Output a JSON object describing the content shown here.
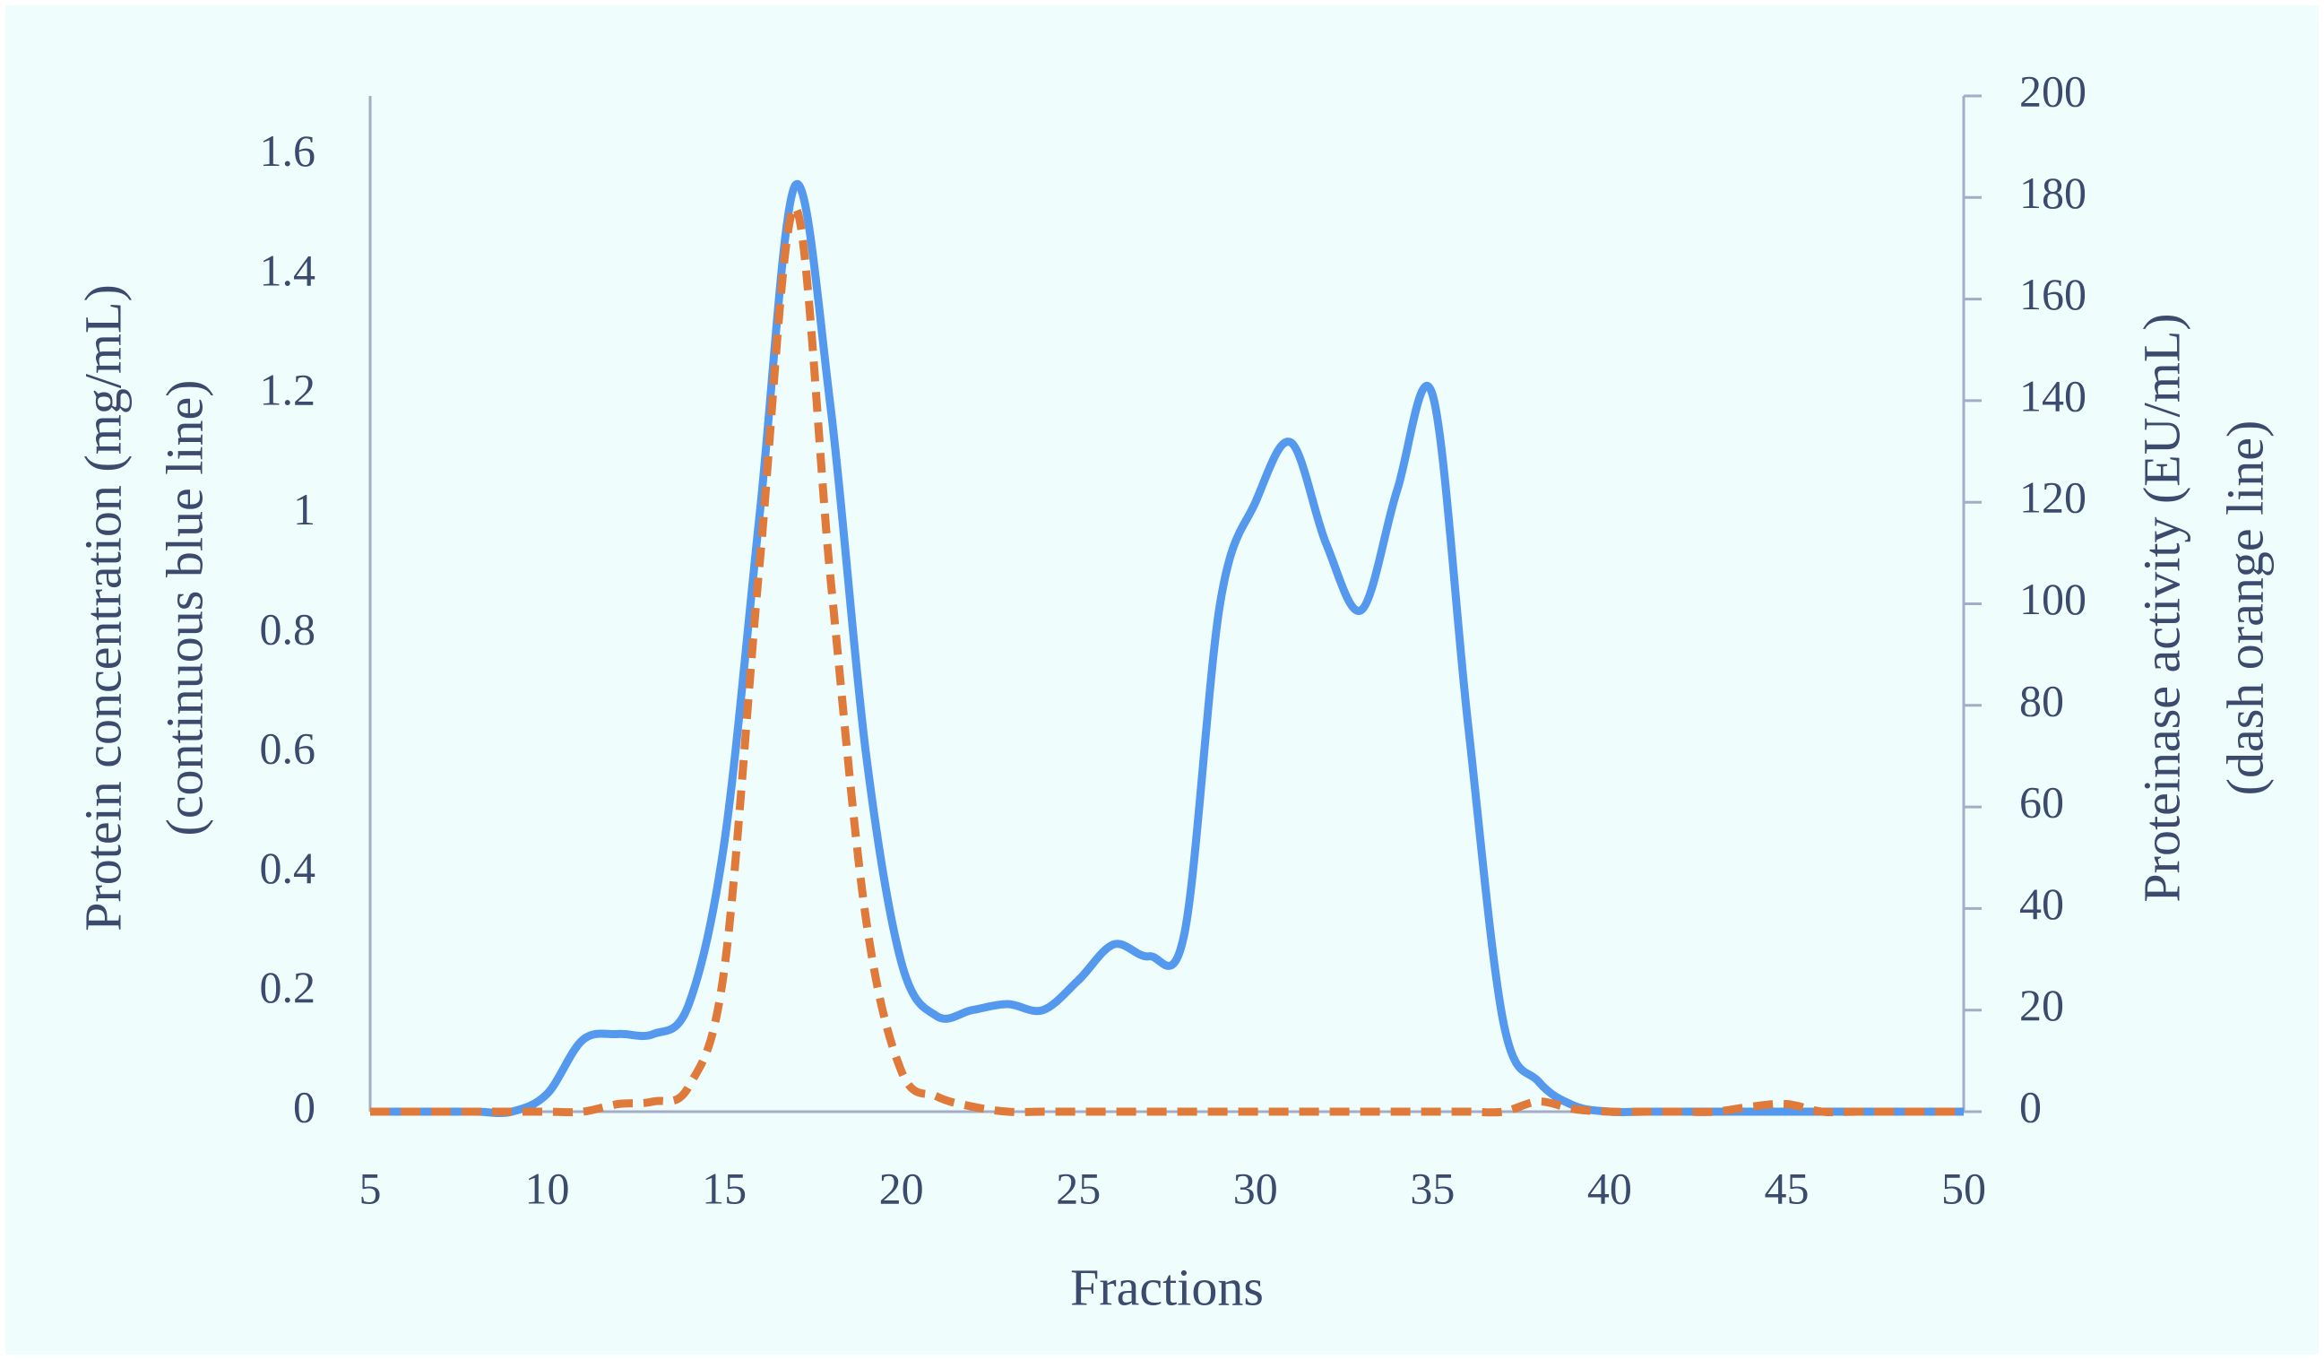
{
  "chart_data": {
    "type": "line",
    "xlabel": "Fractions",
    "ylabel": [
      "Protein concentration (mg/mL)",
      "(continuous blue line)"
    ],
    "y2label": [
      "Proteinase activity (EU/mL)",
      "(dash orange line)"
    ],
    "x": [
      5,
      6,
      7,
      8,
      9,
      10,
      11,
      12,
      13,
      14,
      15,
      16,
      17,
      18,
      19,
      20,
      21,
      22,
      23,
      24,
      25,
      26,
      27,
      28,
      29,
      30,
      31,
      32,
      33,
      34,
      35,
      36,
      37,
      38,
      39,
      40,
      41,
      42,
      43,
      44,
      45,
      46,
      47,
      48,
      49,
      50
    ],
    "series": [
      {
        "name": "Protein concentration",
        "color": "#5599ee",
        "dash": false,
        "values": [
          0,
          0,
          0,
          0,
          0,
          0.03,
          0.12,
          0.13,
          0.13,
          0.18,
          0.45,
          1.0,
          1.55,
          1.18,
          0.6,
          0.25,
          0.16,
          0.17,
          0.18,
          0.17,
          0.22,
          0.28,
          0.26,
          0.3,
          0.85,
          1.02,
          1.12,
          0.95,
          0.84,
          1.04,
          1.2,
          0.65,
          0.15,
          0.05,
          0.01,
          0,
          0,
          0,
          0,
          0,
          0,
          0,
          0,
          0,
          0,
          0
        ]
      },
      {
        "name": "Proteinase activity",
        "color": "#e07a3a",
        "dash": true,
        "axis": "y2",
        "values": [
          0,
          0,
          0,
          0,
          0,
          0,
          0,
          1.5,
          2,
          5,
          28,
          108,
          178,
          105,
          38,
          8,
          3,
          1,
          0,
          0,
          0,
          0,
          0,
          0,
          0,
          0,
          0,
          0,
          0,
          0,
          0,
          0,
          0,
          2,
          0.5,
          0,
          0,
          0,
          0,
          1,
          1.5,
          0,
          0,
          0,
          0,
          0
        ]
      }
    ],
    "xlim": [
      5,
      50
    ],
    "xticks": [
      5,
      10,
      15,
      20,
      25,
      30,
      35,
      40,
      45,
      50
    ],
    "ylim": [
      0,
      1.7
    ],
    "yticks": [
      0,
      0.2,
      0.4,
      0.6,
      0.8,
      1,
      1.2,
      1.4,
      1.6
    ],
    "y2lim": [
      0,
      200
    ],
    "y2ticks": [
      0,
      20,
      40,
      60,
      80,
      100,
      120,
      140,
      160,
      180,
      200
    ],
    "grid": false,
    "legend": false
  }
}
